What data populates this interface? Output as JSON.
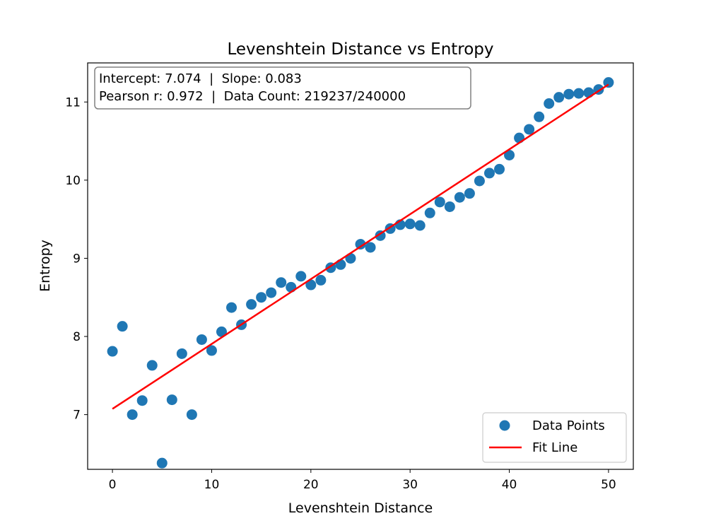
{
  "chart_data": {
    "type": "scatter",
    "title": "Levenshtein Distance vs Entropy",
    "xlabel": "Levenshtein Distance",
    "ylabel": "Entropy",
    "xlim": [
      -2.5,
      52.5
    ],
    "ylim": [
      6.3,
      11.5
    ],
    "xticks": [
      0,
      10,
      20,
      30,
      40,
      50
    ],
    "yticks": [
      7,
      8,
      9,
      10,
      11
    ],
    "grid": false,
    "legend_position": "bottom-right",
    "stats_lines": [
      "Intercept: 7.074  |  Slope: 0.083",
      "Pearson r: 0.972  |  Data Count: 219237/240000"
    ],
    "series": [
      {
        "name": "Data Points",
        "kind": "scatter",
        "color": "#1f77b4",
        "x": [
          0,
          1,
          2,
          3,
          4,
          5,
          6,
          7,
          8,
          9,
          10,
          11,
          12,
          13,
          14,
          15,
          16,
          17,
          18,
          19,
          20,
          21,
          22,
          23,
          24,
          25,
          26,
          27,
          28,
          29,
          30,
          31,
          32,
          33,
          34,
          35,
          36,
          37,
          38,
          39,
          40,
          41,
          42,
          43,
          44,
          45,
          46,
          47,
          48,
          49,
          50
        ],
        "y": [
          7.81,
          8.13,
          7.0,
          7.18,
          7.63,
          6.38,
          7.19,
          7.78,
          7.0,
          7.96,
          7.82,
          8.06,
          8.37,
          8.15,
          8.41,
          8.5,
          8.56,
          8.69,
          8.63,
          8.77,
          8.66,
          8.72,
          8.88,
          8.92,
          9.0,
          9.18,
          9.14,
          9.29,
          9.38,
          9.43,
          9.44,
          9.42,
          9.58,
          9.72,
          9.66,
          9.78,
          9.83,
          9.99,
          10.09,
          10.14,
          10.32,
          10.54,
          10.65,
          10.81,
          10.98,
          11.06,
          11.1,
          11.11,
          11.12,
          11.16,
          11.25
        ]
      },
      {
        "name": "Fit Line",
        "kind": "line",
        "color": "#ff0000",
        "intercept": 7.074,
        "slope": 0.083,
        "x_range": [
          0,
          50
        ]
      }
    ]
  }
}
